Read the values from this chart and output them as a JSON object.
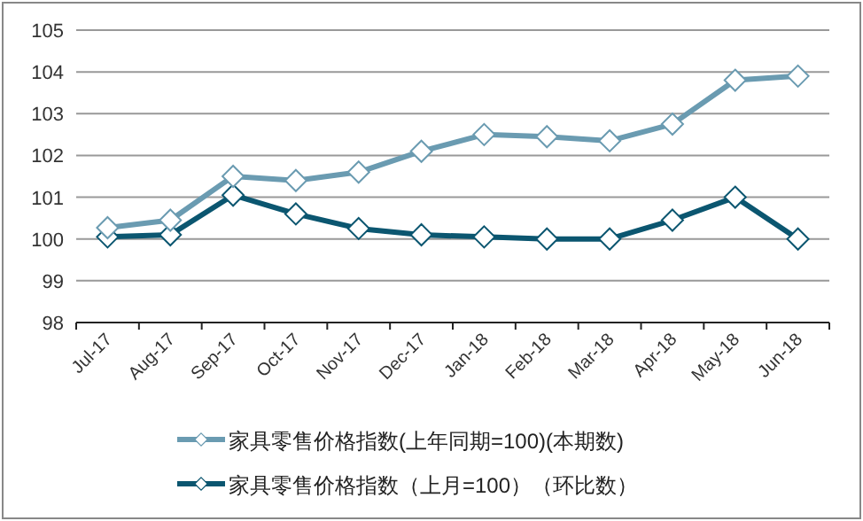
{
  "chart_data": {
    "type": "line",
    "categories": [
      "Jul-17",
      "Aug-17",
      "Sep-17",
      "Oct-17",
      "Nov-17",
      "Dec-17",
      "Jan-18",
      "Feb-18",
      "Mar-18",
      "Apr-18",
      "May-18",
      "Jun-18"
    ],
    "series": [
      {
        "name": "家具零售价格指数(上年同期=100)(本期数)",
        "color": "#6a9bb1",
        "values": [
          100.27,
          100.45,
          101.5,
          101.4,
          101.6,
          102.1,
          102.5,
          102.45,
          102.35,
          102.75,
          103.8,
          103.9
        ]
      },
      {
        "name": "家具零售价格指数（上月=100）（环比数）",
        "color": "#0b5670",
        "values": [
          100.05,
          100.1,
          101.05,
          100.6,
          100.25,
          100.1,
          100.05,
          100,
          100,
          100.45,
          101,
          100
        ]
      }
    ],
    "ylim": [
      98,
      105
    ],
    "yticks": [
      98,
      99,
      100,
      101,
      102,
      103,
      104,
      105
    ],
    "grid": "y",
    "legend": "bottom",
    "marker": "diamond",
    "line_style": "solid"
  }
}
